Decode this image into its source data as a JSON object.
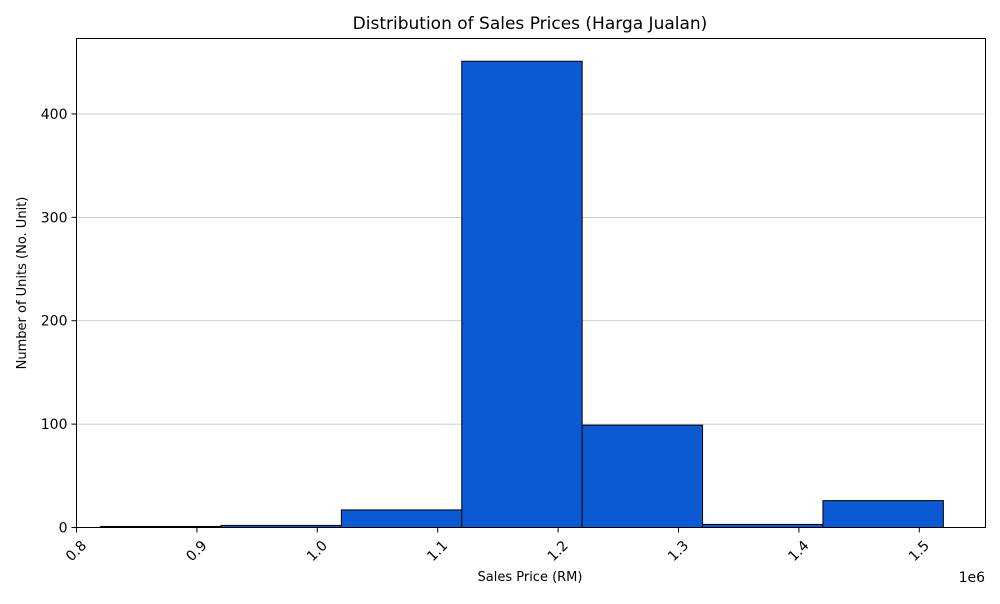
{
  "chart_data": {
    "type": "bar",
    "title": "Distribution of Sales Prices (Harga Jualan)",
    "xlabel": "Sales Price (RM)",
    "ylabel": "Number of Units (No. Unit)",
    "x_offset_label": "1e6",
    "bar_color": "#0b5ad3",
    "edge_color": "#000000",
    "grid": "y-major",
    "xlim": [
      0.8,
      1.555
    ],
    "ylim": [
      0,
      473
    ],
    "x_ticks": [
      {
        "value": 0.8,
        "label": "0.8"
      },
      {
        "value": 0.9,
        "label": "0.9"
      },
      {
        "value": 1.0,
        "label": "1.0"
      },
      {
        "value": 1.1,
        "label": "1.1"
      },
      {
        "value": 1.2,
        "label": "1.2"
      },
      {
        "value": 1.3,
        "label": "1.3"
      },
      {
        "value": 1.4,
        "label": "1.4"
      },
      {
        "value": 1.5,
        "label": "1.5"
      }
    ],
    "y_ticks": [
      {
        "value": 0,
        "label": "0"
      },
      {
        "value": 100,
        "label": "100"
      },
      {
        "value": 200,
        "label": "200"
      },
      {
        "value": 300,
        "label": "300"
      },
      {
        "value": 400,
        "label": "400"
      }
    ],
    "bins": [
      {
        "start": 0.82,
        "end": 0.92,
        "count": 1
      },
      {
        "start": 0.92,
        "end": 1.02,
        "count": 2
      },
      {
        "start": 1.02,
        "end": 1.12,
        "count": 17
      },
      {
        "start": 1.12,
        "end": 1.22,
        "count": 451
      },
      {
        "start": 1.22,
        "end": 1.32,
        "count": 99
      },
      {
        "start": 1.32,
        "end": 1.42,
        "count": 3
      },
      {
        "start": 1.42,
        "end": 1.52,
        "count": 26
      }
    ]
  }
}
